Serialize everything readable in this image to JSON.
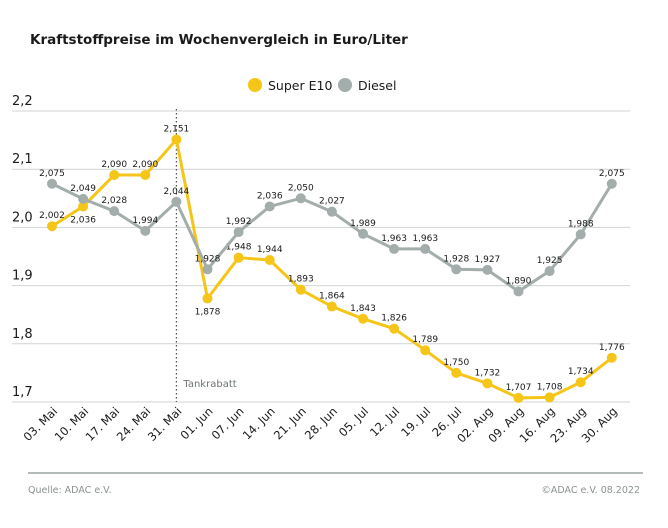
{
  "chart_data": {
    "type": "line",
    "title": "Kraftstoffpreise im Wochenvergleich in Euro/Liter",
    "categories": [
      "03. Mai",
      "10. Mai",
      "17. Mai",
      "24. Mai",
      "31. Mai",
      "01. Jun",
      "07. Jun",
      "14. Jun",
      "21. Jun",
      "28. Jun",
      "05. Jul",
      "12. Jul",
      "19. Jul",
      "26. Jul",
      "02. Aug",
      "09. Aug",
      "16. Aug",
      "23. Aug",
      "30. Aug"
    ],
    "series": [
      {
        "name": "Super E10",
        "color": "#f5c518",
        "values": [
          2.002,
          2.036,
          2.09,
          2.09,
          2.151,
          1.878,
          1.948,
          1.944,
          1.893,
          1.864,
          1.843,
          1.826,
          1.789,
          1.75,
          1.732,
          1.707,
          1.708,
          1.734,
          1.776
        ],
        "labels": [
          "2,002",
          "2,036",
          "2,090",
          "2,090",
          "2,151",
          "1,878",
          "1,948",
          "1,944",
          "1,893",
          "1,864",
          "1,843",
          "1,826",
          "1,789",
          "1,750",
          "1,732",
          "1,707",
          "1,708",
          "1,734",
          "1,776"
        ]
      },
      {
        "name": "Diesel",
        "color": "#a3adab",
        "values": [
          2.075,
          2.049,
          2.028,
          1.994,
          2.044,
          1.928,
          1.992,
          2.036,
          2.05,
          2.027,
          1.989,
          1.963,
          1.963,
          1.928,
          1.927,
          1.89,
          1.925,
          1.988,
          2.075
        ],
        "labels": [
          "2,075",
          "2,049",
          "2,028",
          "1,994",
          "2,044",
          "1,928",
          "1,992",
          "2,036",
          "2,050",
          "2,027",
          "1,989",
          "1,963",
          "1,963",
          "1,928",
          "1,927",
          "1,890",
          "1,925",
          "1,988",
          "2,075"
        ]
      }
    ],
    "yticks": [
      2.2,
      2.1,
      2.0,
      1.9,
      1.8,
      1.7
    ],
    "ytick_labels": [
      "2,2",
      "2,1",
      "2,0",
      "1,9",
      "1,8",
      "1,7"
    ],
    "ylim": [
      1.7,
      2.2
    ],
    "grid": "horizontal",
    "legend": "top-center",
    "annotation": {
      "label": "Tankrabatt",
      "at_category": "31. Mai",
      "style": "dotted vertical line"
    }
  },
  "footer": {
    "source": "Quelle: ADAC e.V.",
    "copyright": "©ADAC e.V.  08.2022"
  }
}
